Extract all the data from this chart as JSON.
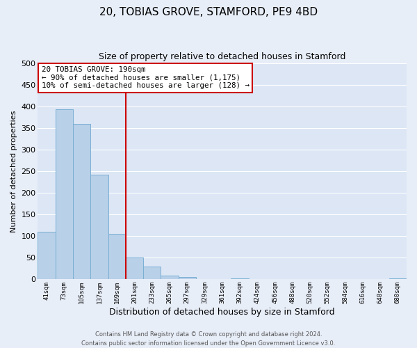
{
  "title": "20, TOBIAS GROVE, STAMFORD, PE9 4BD",
  "subtitle": "Size of property relative to detached houses in Stamford",
  "xlabel": "Distribution of detached houses by size in Stamford",
  "ylabel": "Number of detached properties",
  "bin_labels": [
    "41sqm",
    "73sqm",
    "105sqm",
    "137sqm",
    "169sqm",
    "201sqm",
    "233sqm",
    "265sqm",
    "297sqm",
    "329sqm",
    "361sqm",
    "392sqm",
    "424sqm",
    "456sqm",
    "488sqm",
    "520sqm",
    "552sqm",
    "584sqm",
    "616sqm",
    "648sqm",
    "680sqm"
  ],
  "bar_values": [
    110,
    393,
    360,
    242,
    105,
    50,
    30,
    8,
    5,
    0,
    0,
    2,
    0,
    1,
    0,
    0,
    0,
    0,
    0,
    0,
    2
  ],
  "bar_color": "#b8d0e8",
  "bar_edgecolor": "#7aafd4",
  "bg_color": "#e8eef8",
  "plot_bg": "#dce6f5",
  "grid_color": "#ffffff",
  "ylim": [
    0,
    500
  ],
  "yticks": [
    0,
    50,
    100,
    150,
    200,
    250,
    300,
    350,
    400,
    450,
    500
  ],
  "vline_color": "#cc0000",
  "annotation_title": "20 TOBIAS GROVE: 190sqm",
  "annotation_line1": "← 90% of detached houses are smaller (1,175)",
  "annotation_line2": "10% of semi-detached houses are larger (128) →",
  "annotation_box_color": "#ffffff",
  "annotation_box_edgecolor": "#cc0000",
  "footer_line1": "Contains HM Land Registry data © Crown copyright and database right 2024.",
  "footer_line2": "Contains public sector information licensed under the Open Government Licence v3.0."
}
